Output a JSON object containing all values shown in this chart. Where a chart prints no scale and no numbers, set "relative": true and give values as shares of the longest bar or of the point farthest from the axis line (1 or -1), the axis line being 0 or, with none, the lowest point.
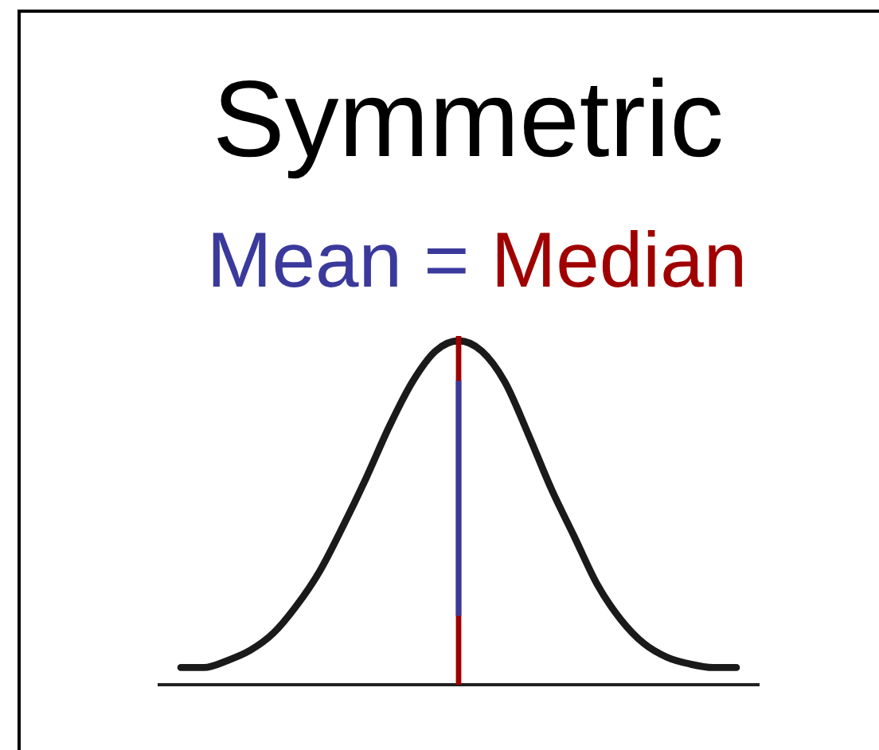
{
  "chart_data": {
    "type": "line",
    "title": "Symmetric",
    "annotations": [
      "="
    ],
    "relative": true,
    "categories": [
      null,
      null,
      null,
      null,
      null,
      null,
      null,
      null,
      null,
      null,
      null,
      null,
      null,
      null,
      null,
      null,
      null,
      null,
      null,
      null,
      null,
      null,
      null,
      null,
      null,
      null,
      null
    ],
    "values": [
      null,
      0.05,
      0.05,
      0.07,
      0.1,
      0.15,
      0.23,
      0.33,
      0.46,
      0.6,
      0.75,
      0.88,
      0.97,
      1,
      0.97,
      0.88,
      0.73,
      0.57,
      0.43,
      0.29,
      0.19,
      0.12,
      0.08,
      0.06,
      0.05,
      0.05,
      null
    ],
    "color": "#1a1a1a",
    "tick_labels": false,
    "line_style": "solid",
    "ref_lines": [
      {
        "axis": "x",
        "label": "Mean",
        "color": "#3a3a9c"
      },
      {
        "axis": "x",
        "label": "Median",
        "color": "#a00000"
      }
    ]
  }
}
